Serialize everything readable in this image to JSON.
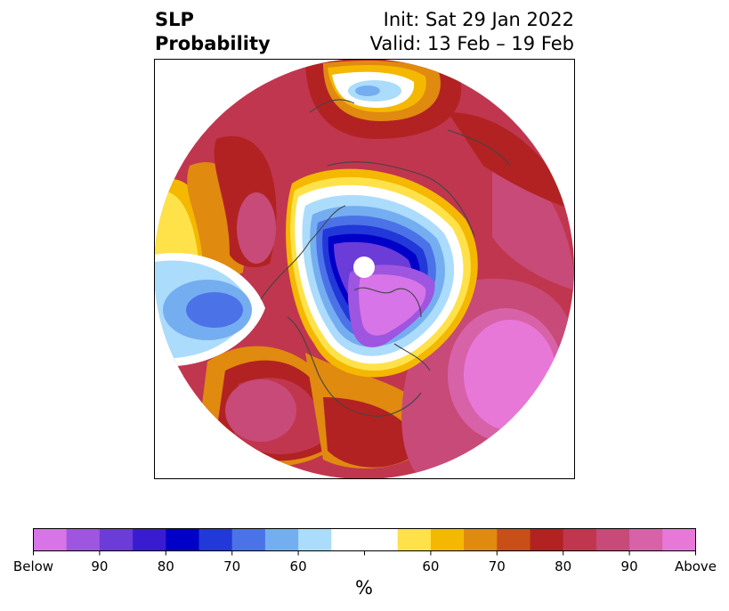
{
  "title": {
    "left_line1": "SLP",
    "left_line2": "Probability",
    "right_line1": "Init: Sat 29 Jan 2022",
    "right_line2": "Valid: 13 Feb – 19 Feb"
  },
  "colorbar": {
    "unit": "%",
    "colors": [
      "#d674e8",
      "#9e55e0",
      "#6b3cd8",
      "#3a1cd0",
      "#0000c8",
      "#2238d8",
      "#4c72e8",
      "#74aef0",
      "#acdcfb",
      "#ffffff",
      "#ffffff",
      "#ffe24a",
      "#f4b800",
      "#e08a10",
      "#c85018",
      "#b22222",
      "#c0364e",
      "#c84a78",
      "#d862a8",
      "#e878d8"
    ],
    "tick_labels": [
      "Below",
      "90",
      "80",
      "70",
      "60",
      "",
      "60",
      "70",
      "80",
      "90",
      "Above"
    ]
  },
  "map": {
    "projection": "north-polar-stereographic",
    "regions": [
      {
        "name": "pacific-below-normal-low",
        "palette": "below",
        "peak_class": "70"
      },
      {
        "name": "arctic-below-normal",
        "palette": "below",
        "peak_class": "90"
      },
      {
        "name": "north-atlantic-above-normal",
        "palette": "above",
        "peak_class": "Above"
      },
      {
        "name": "eurasia-above-normal",
        "palette": "above",
        "peak_class": "90"
      },
      {
        "name": "north-america-above-normal",
        "palette": "above",
        "peak_class": "90"
      }
    ]
  }
}
